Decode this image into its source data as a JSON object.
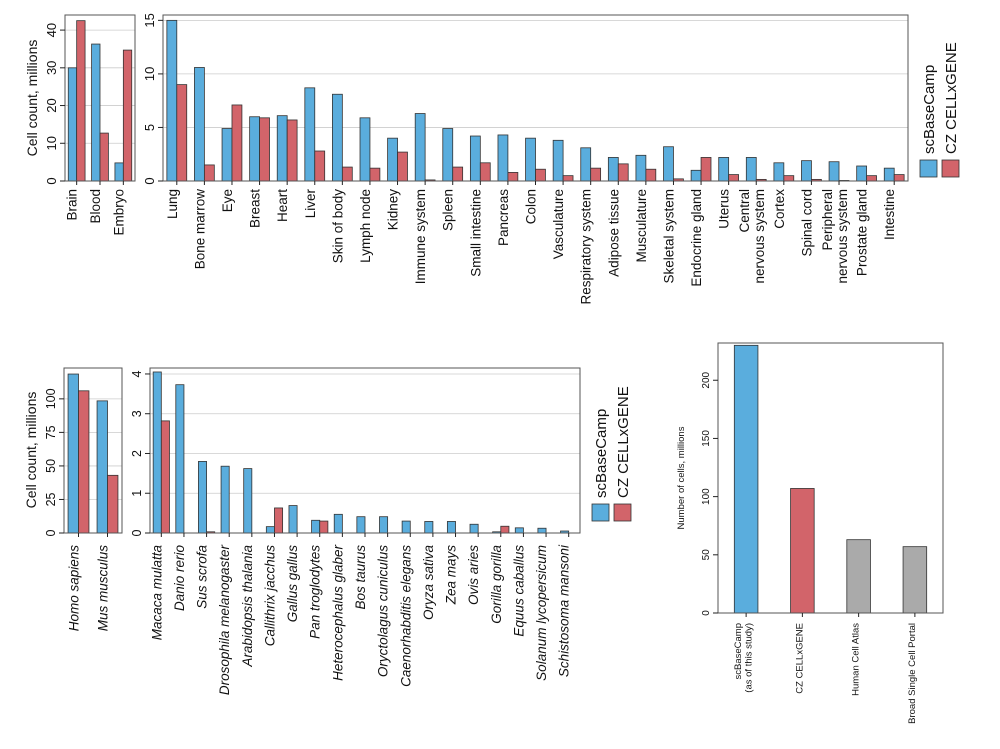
{
  "colors": {
    "scbasecamp": "#5AADDD",
    "czcellxgene": "#D2646A",
    "other": "#AAAAAA"
  },
  "legend": {
    "items": [
      "scBaseCamp",
      "CZ CELLxGENE"
    ]
  },
  "chart_data": [
    {
      "id": "tissue-large",
      "type": "bar",
      "title": "",
      "xlabel": "",
      "ylabel": "Cell count, millions",
      "ylim": [
        0,
        44
      ],
      "yticks": [
        0,
        10,
        20,
        30,
        40
      ],
      "grid": true,
      "categories": [
        "Brain",
        "Blood",
        "Embryo"
      ],
      "series": [
        {
          "name": "scBaseCamp",
          "values": [
            30.0,
            36.3,
            4.8
          ]
        },
        {
          "name": "CZ CELLxGENE",
          "values": [
            42.5,
            12.7,
            34.7
          ]
        }
      ]
    },
    {
      "id": "tissue-small",
      "type": "bar",
      "title": "",
      "xlabel": "",
      "ylabel": "",
      "ylim": [
        0,
        15.5
      ],
      "yticks": [
        0,
        5,
        10,
        15
      ],
      "grid": true,
      "legend_position": "right",
      "categories": [
        "Lung",
        "Bone marrow",
        "Eye",
        "Breast",
        "Heart",
        "Liver",
        "Skin of body",
        "Lymph node",
        "Kidney",
        "Immune system",
        "Spleen",
        "Small intestine",
        "Pancreas",
        "Colon",
        "Vasculature",
        "Respiratory system",
        "Adipose tissue",
        "Musculature",
        "Skeletal system",
        "Endocrine gland",
        "Uterus",
        "Central nervous system",
        "Cortex",
        "Spinal cord",
        "Peripheral nervous system",
        "Prostate gland",
        "Intestine"
      ],
      "series": [
        {
          "name": "scBaseCamp",
          "values": [
            15.0,
            10.6,
            4.9,
            6.0,
            6.1,
            8.7,
            8.1,
            5.9,
            4.0,
            6.3,
            4.9,
            4.2,
            4.3,
            4.0,
            3.8,
            3.1,
            2.2,
            2.4,
            3.2,
            1.0,
            2.2,
            2.2,
            1.7,
            1.9,
            1.8,
            1.4,
            1.2
          ]
        },
        {
          "name": "CZ CELLxGENE",
          "values": [
            9.0,
            1.5,
            7.1,
            5.9,
            5.7,
            2.8,
            1.3,
            1.2,
            2.7,
            0.1,
            1.3,
            1.7,
            0.8,
            1.1,
            0.5,
            1.2,
            1.6,
            1.1,
            0.2,
            2.2,
            0.6,
            0.15,
            0.5,
            0.15,
            0.05,
            0.5,
            0.6
          ]
        }
      ]
    },
    {
      "id": "organism-large",
      "type": "bar",
      "title": "",
      "xlabel": "",
      "ylabel": "Cell count, millions",
      "ylim": [
        0,
        123
      ],
      "yticks": [
        0,
        25,
        50,
        75,
        100
      ],
      "grid": true,
      "categories": [
        "Homo sapiens",
        "Mus musculus"
      ],
      "series": [
        {
          "name": "scBaseCamp",
          "values": [
            118.5,
            98.5
          ]
        },
        {
          "name": "CZ CELLxGENE",
          "values": [
            106.0,
            43.0
          ]
        }
      ]
    },
    {
      "id": "organism-small",
      "type": "bar",
      "title": "",
      "xlabel": "",
      "ylabel": "",
      "ylim": [
        0,
        4.15
      ],
      "yticks": [
        0,
        1,
        2,
        3,
        4
      ],
      "grid": true,
      "legend_position": "right",
      "categories": [
        "Macaca mulatta",
        "Danio rerio",
        "Sus scrofa",
        "Drosophila melanogaster",
        "Arabidopsis thalania",
        "Callithrix jacchus",
        "Gallus gallus",
        "Pan troglodytes",
        "Heterocephalus glaber",
        "Bos taurus",
        "Oryctolagus cuniculus",
        "Caenorhabditis elegans",
        "Oryza sativa",
        "Zea mays",
        "Ovis aries",
        "Gorilla gorilla",
        "Equus caballus",
        "Solanum lycopersicum",
        "Schistosoma mansoni"
      ],
      "series": [
        {
          "name": "scBaseCamp",
          "values": [
            4.05,
            3.73,
            1.8,
            1.68,
            1.62,
            0.16,
            0.69,
            0.32,
            0.47,
            0.41,
            0.41,
            0.3,
            0.29,
            0.29,
            0.22,
            0.03,
            0.13,
            0.12,
            0.05
          ]
        },
        {
          "name": "CZ CELLxGENE",
          "values": [
            2.82,
            0.0,
            0.03,
            0.0,
            0.0,
            0.63,
            0.0,
            0.3,
            0.0,
            0.0,
            0.0,
            0.0,
            0.0,
            0.0,
            0.0,
            0.17,
            0.0,
            0.0,
            0.0
          ]
        }
      ]
    },
    {
      "id": "database-totals",
      "type": "bar",
      "title": "",
      "xlabel": "",
      "ylabel": "Number of cells, millions",
      "ylim": [
        0,
        232
      ],
      "yticks": [
        0,
        50,
        100,
        150,
        200
      ],
      "grid": false,
      "categories": [
        "scBaseCamp\n(as of this study)",
        "CZ CELLxGENE",
        "Human Cell Atlas",
        "Broad Single Cell Portal"
      ],
      "values": [
        230.0,
        107.0,
        63.0,
        57.0
      ],
      "bar_colors": [
        "scbasecamp",
        "czcellxgene",
        "other",
        "other"
      ]
    }
  ]
}
